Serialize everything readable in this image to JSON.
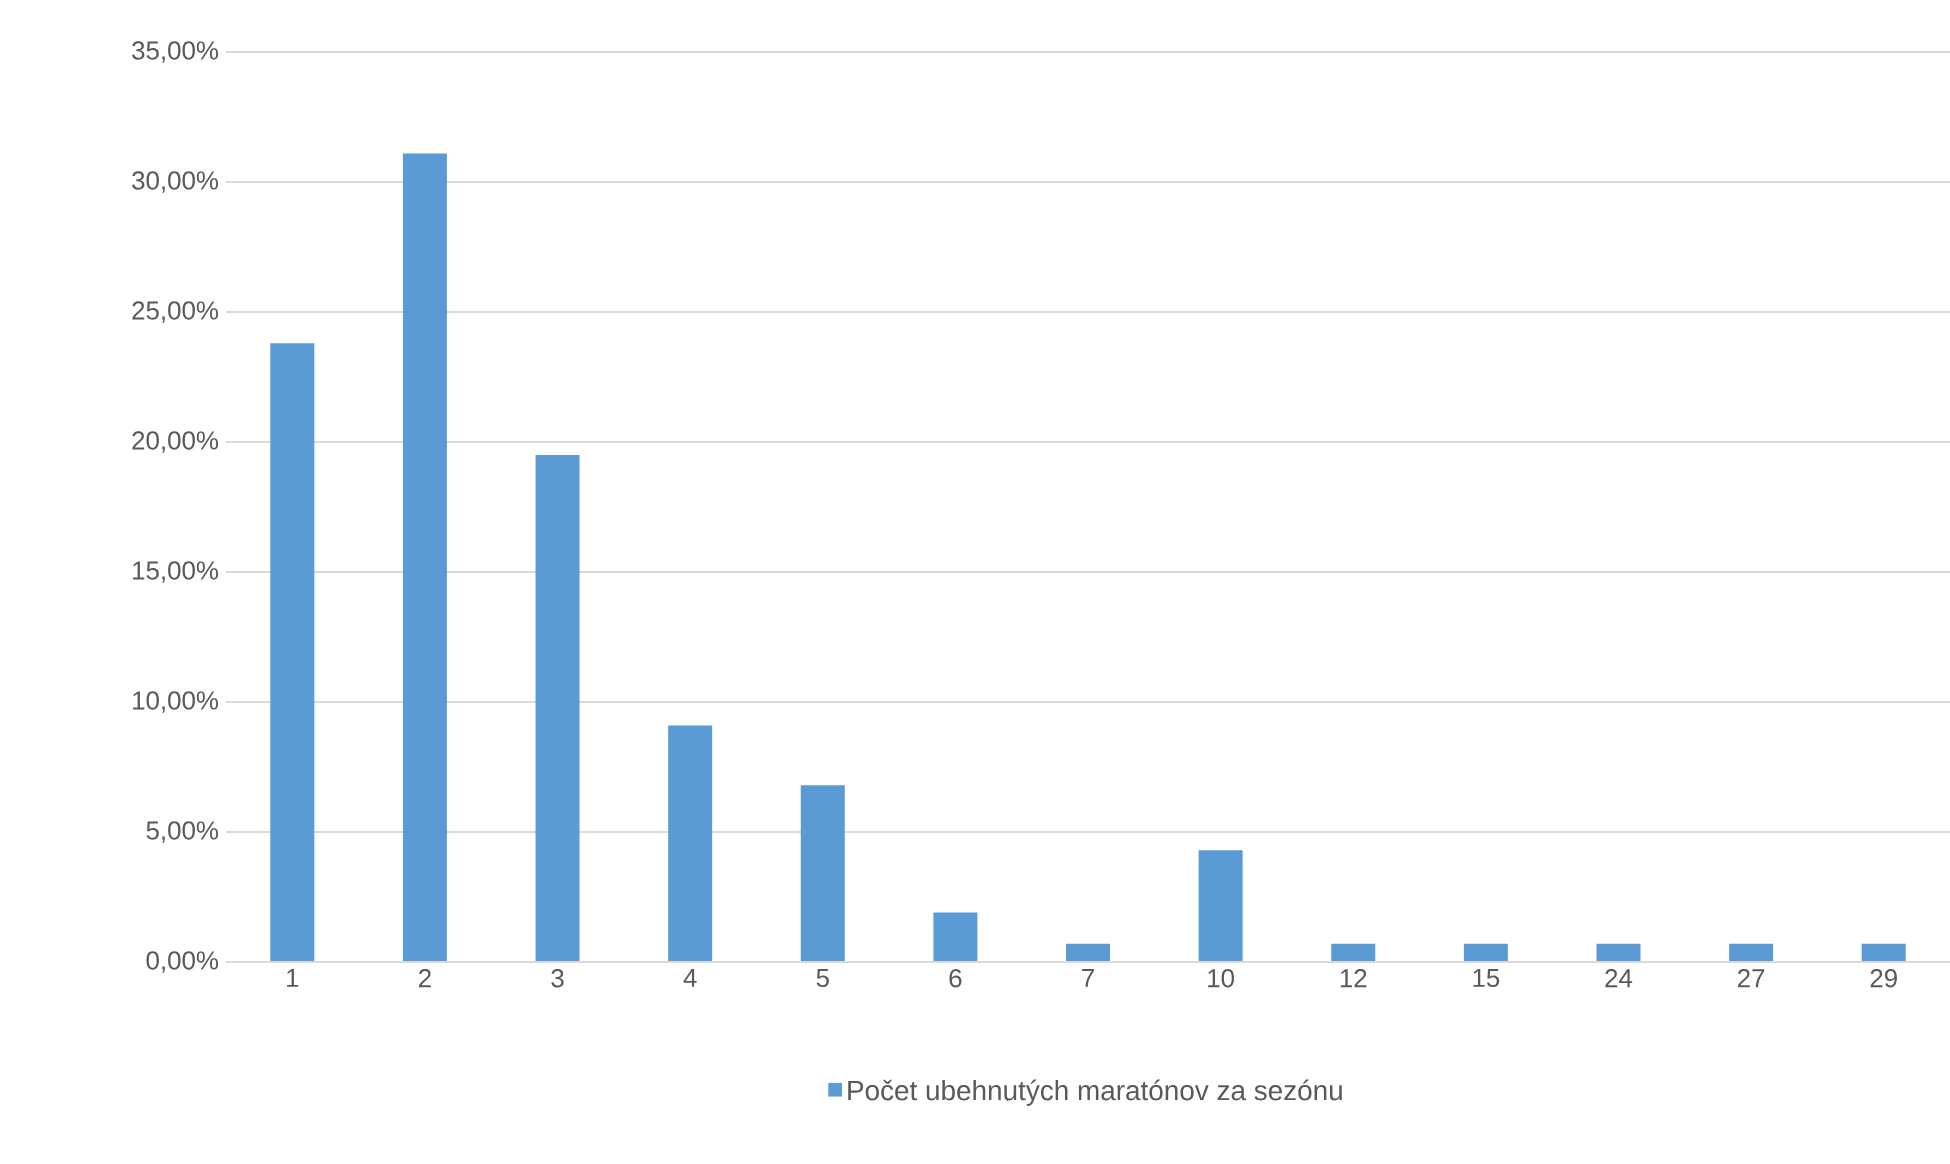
{
  "chart_data": {
    "type": "bar",
    "categories": [
      "1",
      "2",
      "3",
      "4",
      "5",
      "6",
      "7",
      "10",
      "12",
      "15",
      "24",
      "27",
      "29"
    ],
    "series": [
      {
        "name": "Počet ubehnutých maratónov za sezónu",
        "color": "#5b9bd5",
        "values": [
          23.8,
          31.1,
          19.5,
          9.1,
          6.8,
          1.9,
          0.7,
          4.3,
          0.7,
          0.7,
          0.7,
          0.7,
          0.7
        ]
      }
    ],
    "ylim": [
      0,
      35
    ],
    "yticks": [
      {
        "value": 0,
        "label": "0,00%"
      },
      {
        "value": 5,
        "label": "5,00%"
      },
      {
        "value": 10,
        "label": "10,00%"
      },
      {
        "value": 15,
        "label": "15,00%"
      },
      {
        "value": 20,
        "label": "20,00%"
      },
      {
        "value": 25,
        "label": "25,00%"
      },
      {
        "value": 30,
        "label": "30,00%"
      },
      {
        "value": 35,
        "label": "35,00%"
      }
    ],
    "grid": "y",
    "legend": "bottom"
  }
}
